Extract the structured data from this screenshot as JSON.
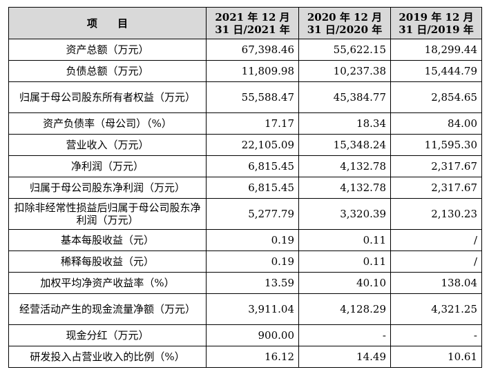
{
  "table": {
    "headers": [
      "项 目",
      "2021 年 12 月 31 日/2021 年",
      "2020 年 12 月 31 日/2020 年",
      "2019 年 12 月 31 日/2019 年"
    ],
    "rows": [
      {
        "label": "资产总额（万元）",
        "v2021": "67,398.46",
        "v2020": "55,622.15",
        "v2019": "18,299.44",
        "tall": false
      },
      {
        "label": "负债总额（万元）",
        "v2021": "11,809.98",
        "v2020": "10,237.38",
        "v2019": "15,444.79",
        "tall": false
      },
      {
        "label": "归属于母公司股东所有者权益（万元）",
        "v2021": "55,588.47",
        "v2020": "45,384.77",
        "v2019": "2,854.65",
        "tall": true
      },
      {
        "label": "资产负债率（母公司）（%）",
        "v2021": "17.17",
        "v2020": "18.34",
        "v2019": "84.00",
        "tall": false
      },
      {
        "label": "营业收入（万元）",
        "v2021": "22,105.09",
        "v2020": "15,348.24",
        "v2019": "11,595.30",
        "tall": false
      },
      {
        "label": "净利润（万元）",
        "v2021": "6,815.45",
        "v2020": "4,132.78",
        "v2019": "2,317.67",
        "tall": false
      },
      {
        "label": "归属于母公司股东净利润（万元）",
        "v2021": "6,815.45",
        "v2020": "4,132.78",
        "v2019": "2,317.67",
        "tall": false
      },
      {
        "label": "扣除非经常性损益后归属于母公司股东净利润（万元）",
        "v2021": "5,277.79",
        "v2020": "3,320.39",
        "v2019": "2,130.23",
        "tall": true
      },
      {
        "label": "基本每股收益（元）",
        "v2021": "0.19",
        "v2020": "0.11",
        "v2019": "/",
        "tall": false
      },
      {
        "label": "稀释每股收益（元）",
        "v2021": "0.19",
        "v2020": "0.11",
        "v2019": "/",
        "tall": false
      },
      {
        "label": "加权平均净资产收益率（%）",
        "v2021": "13.59",
        "v2020": "40.10",
        "v2019": "138.04",
        "tall": false
      },
      {
        "label": "经营活动产生的现金流量净额（万元）",
        "v2021": "3,911.04",
        "v2020": "4,128.29",
        "v2019": "4,321.25",
        "tall": true
      },
      {
        "label": "现金分红（万元）",
        "v2021": "900.00",
        "v2020": "-",
        "v2019": "-",
        "tall": false
      },
      {
        "label": "研发投入占营业收入的比例（%）",
        "v2021": "16.12",
        "v2020": "14.49",
        "v2019": "10.61",
        "tall": false
      }
    ]
  }
}
